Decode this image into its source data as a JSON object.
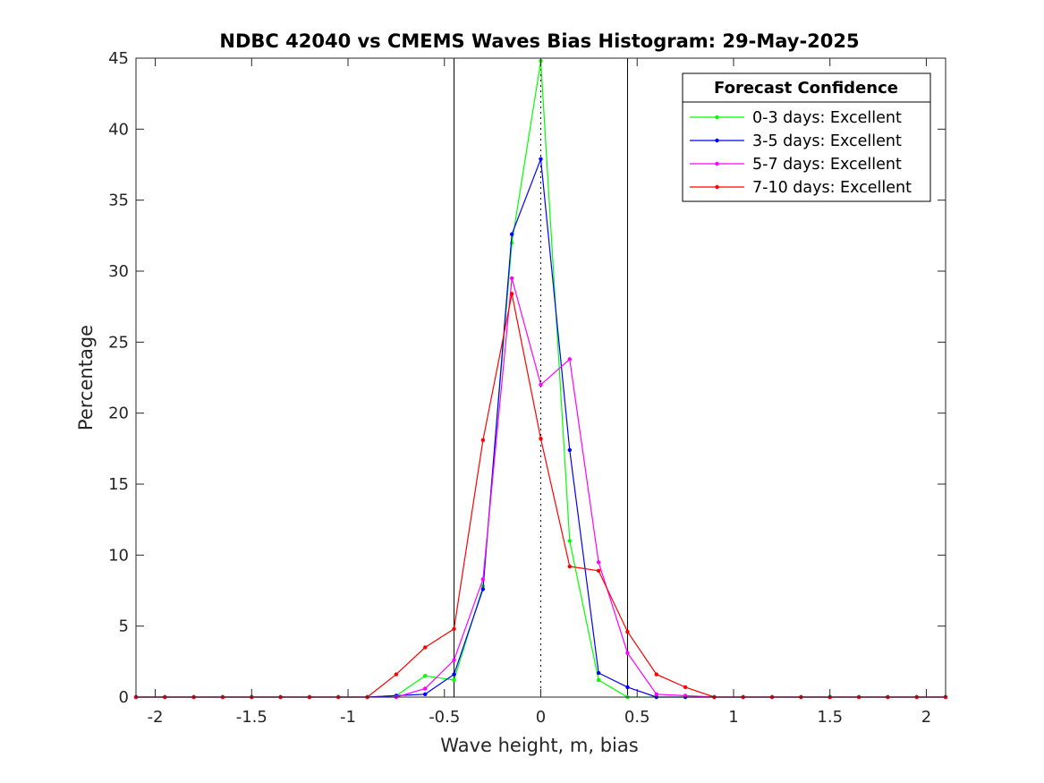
{
  "chart_data": {
    "type": "line",
    "title": "NDBC 42040 vs CMEMS Waves Bias Histogram: 29-May-2025",
    "xlabel": "Wave height, m, bias",
    "ylabel": "Percentage",
    "xlim": [
      -2.1,
      2.1
    ],
    "ylim": [
      0,
      45
    ],
    "xticks": [
      -2,
      -1.5,
      -1,
      -0.5,
      0,
      0.5,
      1,
      1.5,
      2
    ],
    "xtick_labels": [
      "-2",
      "-1.5",
      "-1",
      "-0.5",
      "0",
      "0.5",
      "1",
      "1.5",
      "2"
    ],
    "yticks": [
      0,
      5,
      10,
      15,
      20,
      25,
      30,
      35,
      40,
      45
    ],
    "ytick_labels": [
      "0",
      "5",
      "10",
      "15",
      "20",
      "25",
      "30",
      "35",
      "40",
      "45"
    ],
    "grid": false,
    "legend_title": "Forecast Confidence",
    "legend_position": "top-right",
    "reference_lines": {
      "solid_vertical": [
        -0.45,
        0.45
      ],
      "dotted_vertical": [
        0
      ]
    },
    "x": [
      -2.1,
      -1.95,
      -1.8,
      -1.65,
      -1.5,
      -1.35,
      -1.2,
      -1.05,
      -0.9,
      -0.75,
      -0.6,
      -0.45,
      -0.3,
      -0.15,
      0,
      0.15,
      0.3,
      0.45,
      0.6,
      0.75,
      0.9,
      1.05,
      1.2,
      1.35,
      1.5,
      1.65,
      1.8,
      1.95,
      2.1
    ],
    "series": [
      {
        "name": "0-3 days: Excellent",
        "color": "#00ff00",
        "values": [
          0,
          0,
          0,
          0,
          0,
          0,
          0,
          0,
          0,
          0.1,
          1.5,
          1.2,
          7.8,
          32.0,
          44.8,
          11.0,
          1.2,
          0,
          0,
          0,
          0,
          0,
          0,
          0,
          0,
          0,
          0,
          0,
          0
        ]
      },
      {
        "name": "3-5 days: Excellent",
        "color": "#0000ff",
        "values": [
          0,
          0,
          0,
          0,
          0,
          0,
          0,
          0,
          0,
          0.1,
          0.2,
          1.6,
          7.6,
          32.6,
          37.9,
          17.4,
          1.7,
          0.7,
          0,
          0,
          0,
          0,
          0,
          0,
          0,
          0,
          0,
          0,
          0
        ]
      },
      {
        "name": "5-7 days: Excellent",
        "color": "#ff00ff",
        "values": [
          0,
          0,
          0,
          0,
          0,
          0,
          0,
          0,
          0,
          0,
          0.6,
          2.6,
          8.3,
          29.5,
          22.0,
          23.8,
          9.5,
          3.1,
          0.2,
          0.1,
          0,
          0,
          0,
          0,
          0,
          0,
          0,
          0,
          0
        ]
      },
      {
        "name": "7-10 days: Excellent",
        "color": "#ff0000",
        "values": [
          0,
          0,
          0,
          0,
          0,
          0,
          0,
          0,
          0,
          1.6,
          3.5,
          4.8,
          18.1,
          28.4,
          18.2,
          9.2,
          8.9,
          4.6,
          1.6,
          0.7,
          0,
          0,
          0,
          0,
          0,
          0,
          0,
          0,
          0
        ]
      }
    ]
  }
}
